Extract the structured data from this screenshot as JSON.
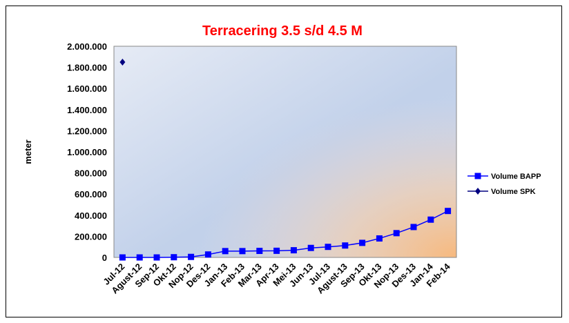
{
  "chart_data": {
    "type": "line",
    "title": "Terracering 3.5 s/d 4.5 M",
    "ylabel": "meter",
    "xlabel": "",
    "ylim": [
      0,
      2000000
    ],
    "ytick_step": 200000,
    "yticks": [
      "0",
      "200.000",
      "400.000",
      "600.000",
      "800.000",
      "1.000.000",
      "1.200.000",
      "1.400.000",
      "1.600.000",
      "1.800.000",
      "2.000.000"
    ],
    "categories": [
      "Jul-12",
      "Agust-12",
      "Sep-12",
      "Okt-12",
      "Nop-12",
      "Des-12",
      "Jan-13",
      "Feb-13",
      "Mar-13",
      "Apr-13",
      "Mei-13",
      "Jun-13",
      "Jul-13",
      "Agust-13",
      "Sep-13",
      "Okt-13",
      "Nop-13",
      "Des-13",
      "Jan-14",
      "Feb-14"
    ],
    "series": [
      {
        "name": "Volume BAPP",
        "marker": "square",
        "color": "#0000ff",
        "values": [
          0,
          0,
          0,
          2000,
          5000,
          28000,
          60000,
          60000,
          62000,
          63000,
          68000,
          90000,
          100000,
          113000,
          138000,
          180000,
          230000,
          288000,
          358000,
          440000
        ]
      },
      {
        "name": "Volume SPK",
        "marker": "diamond",
        "color": "#000080",
        "values": [
          1850000,
          null,
          null,
          null,
          null,
          null,
          null,
          null,
          null,
          null,
          null,
          null,
          null,
          null,
          null,
          null,
          null,
          null,
          null,
          null
        ]
      }
    ],
    "grid": false,
    "legend": "right"
  },
  "colors": {
    "plot_bg_start": "#e2e8f4",
    "plot_bg_blue": "#bccde8",
    "plot_bg_orange": "#f5c08a",
    "title": "#ff0000"
  }
}
